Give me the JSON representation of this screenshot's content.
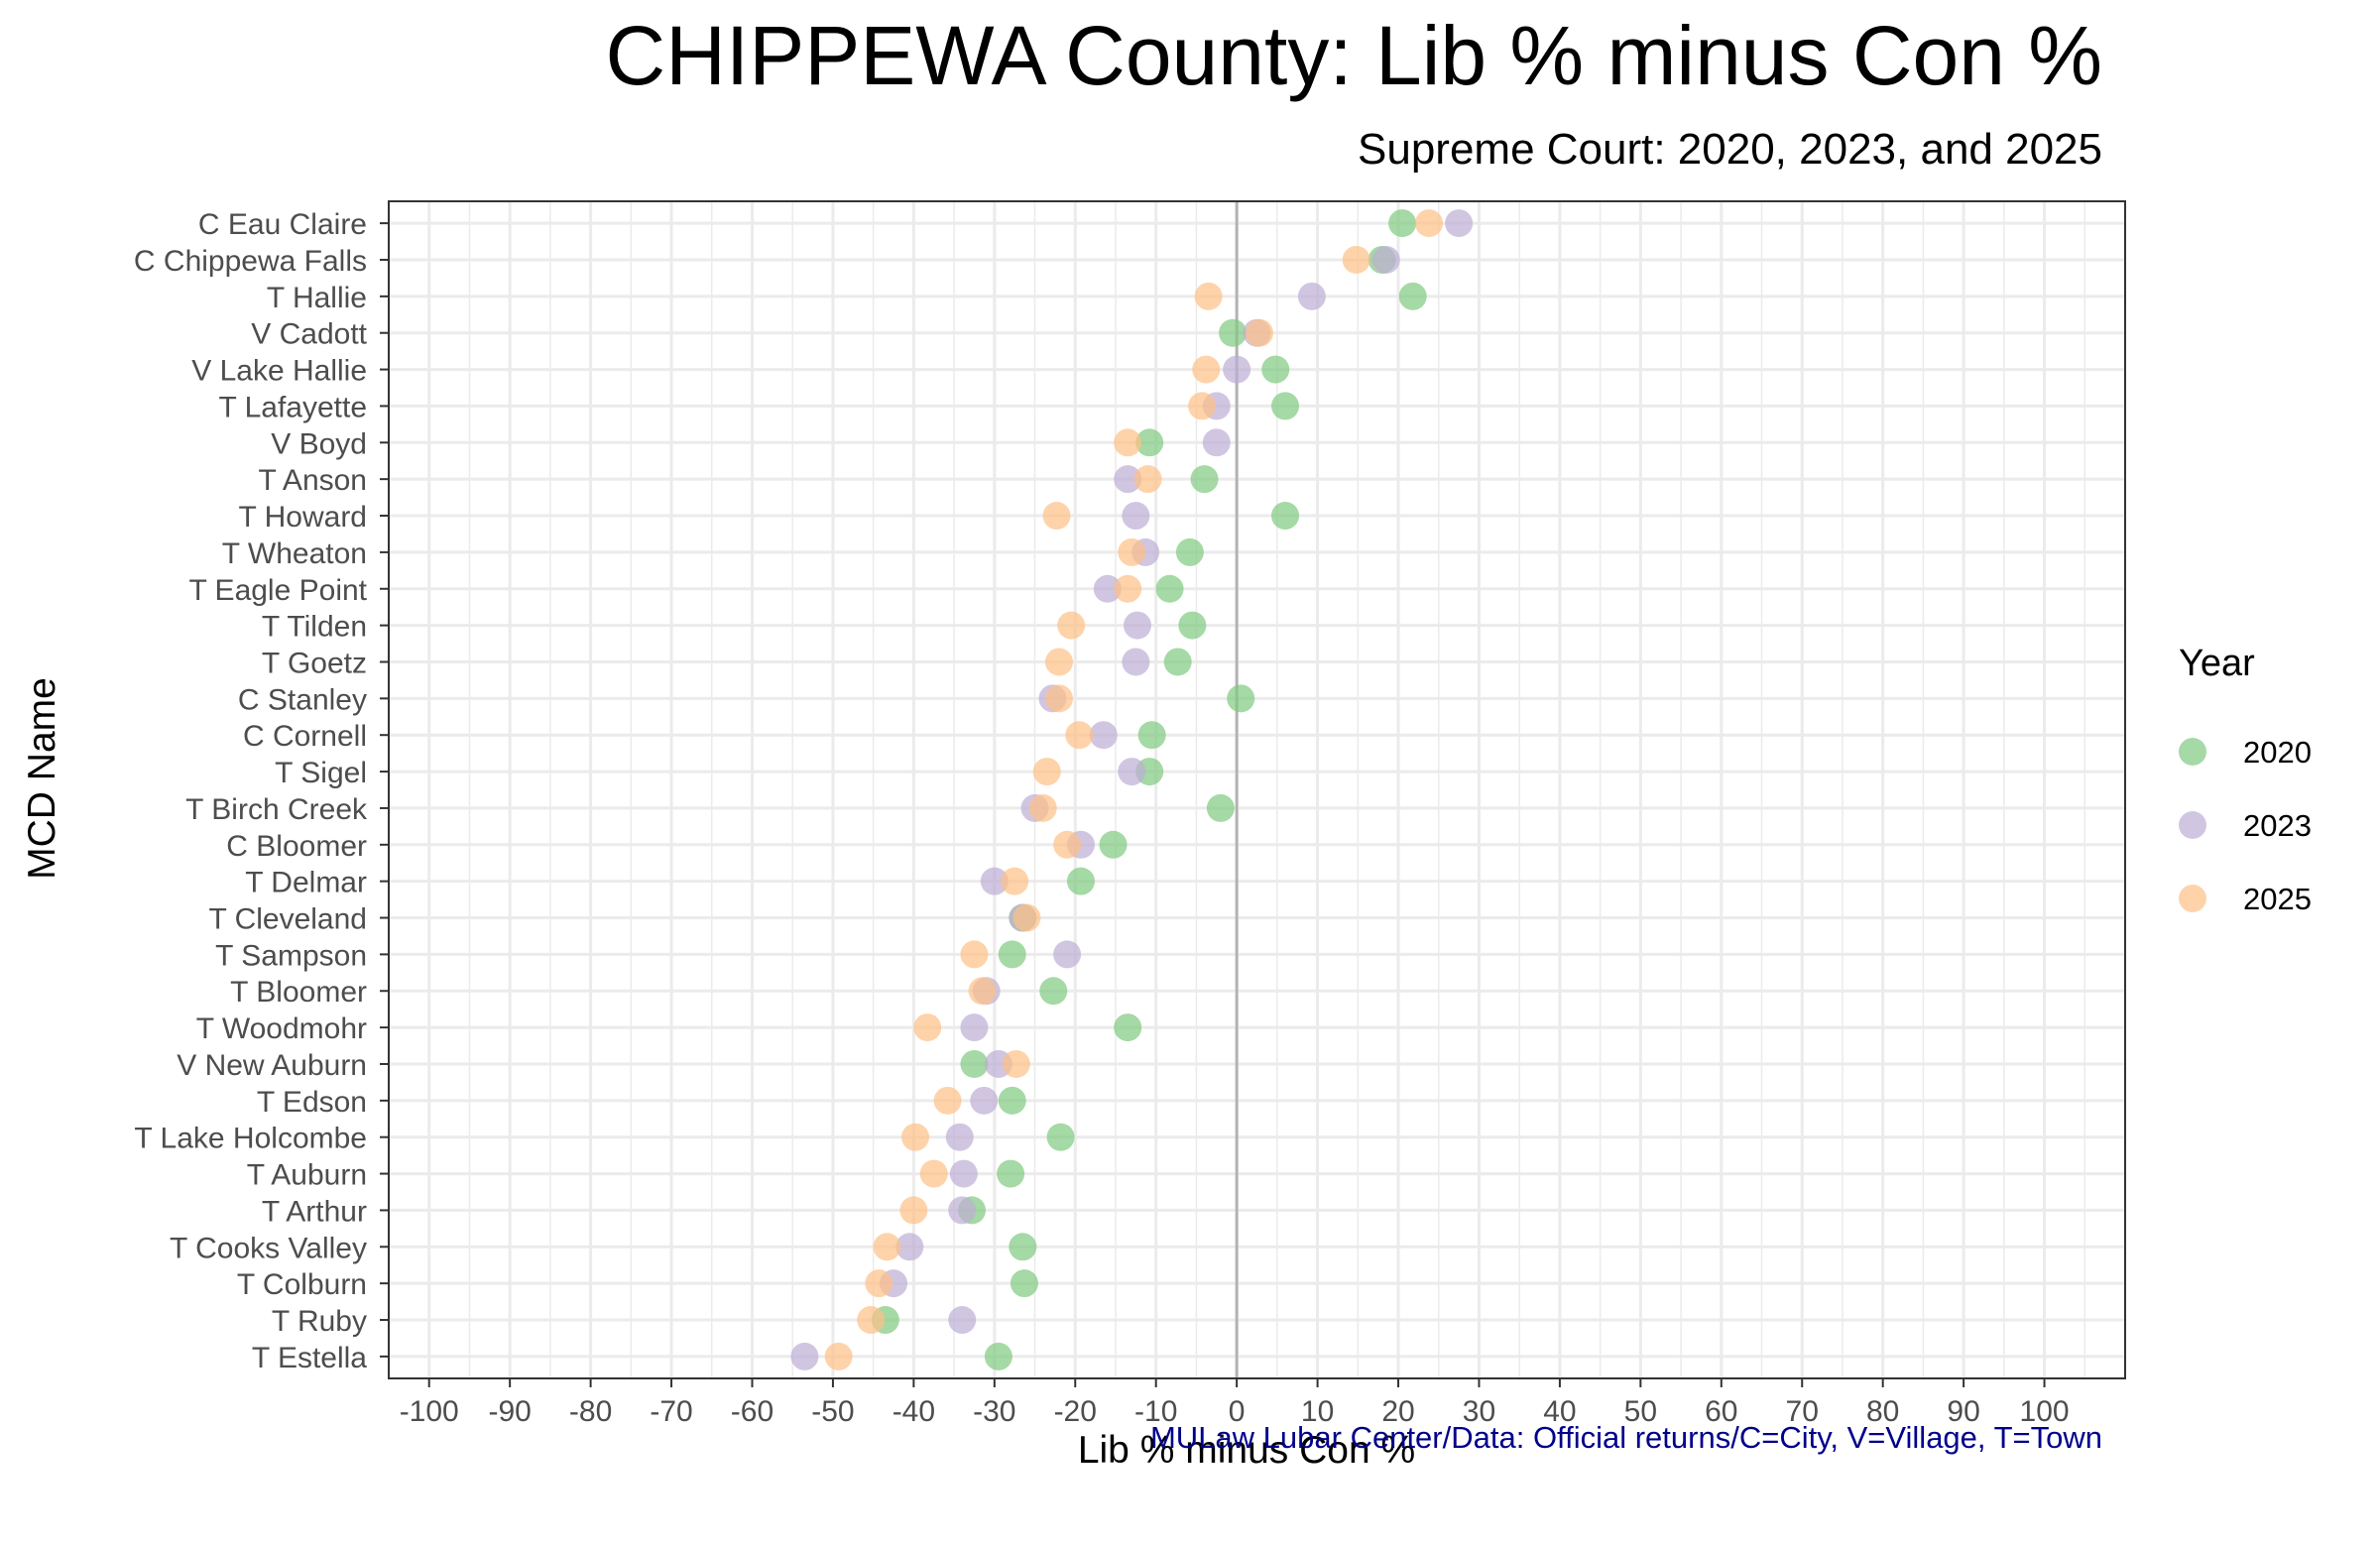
{
  "title": "CHIPPEWA County: Lib % minus Con %",
  "subtitle": "Supreme Court: 2020, 2023, and 2025",
  "caption": "MULaw Lubar Center/Data: Official returns/C=City, V=Village, T=Town",
  "colors": {
    "2020": "#7fc97f",
    "2023": "#beaed4",
    "2025": "#fdc086",
    "zero_line": "#b3b3b3",
    "grid": "#ebebeb",
    "panel_border": "#333333"
  },
  "chart_data": {
    "type": "scatter",
    "title": "CHIPPEWA County: Lib % minus Con %",
    "subtitle": "Supreme Court: 2020, 2023, and 2025",
    "xlabel": "Lib % minus Con %",
    "ylabel": "MCD Name",
    "xlim": [
      -105,
      110
    ],
    "xticks": [
      -100,
      -90,
      -80,
      -70,
      -60,
      -50,
      -40,
      -30,
      -20,
      -10,
      0,
      10,
      20,
      30,
      40,
      50,
      60,
      70,
      80,
      90,
      100
    ],
    "grid": true,
    "legend": {
      "title": "Year",
      "position": "right",
      "entries": [
        "2020",
        "2023",
        "2025"
      ]
    },
    "categories": [
      "C Eau Claire",
      "C Chippewa Falls",
      "T Hallie",
      "V Cadott",
      "V Lake Hallie",
      "T Lafayette",
      "V Boyd",
      "T Anson",
      "T Howard",
      "T Wheaton",
      "T Eagle Point",
      "T Tilden",
      "T Goetz",
      "C Stanley",
      "C Cornell",
      "T Sigel",
      "T Birch Creek",
      "C Bloomer",
      "T Delmar",
      "T Cleveland",
      "T Sampson",
      "T Bloomer",
      "T Woodmohr",
      "V New Auburn",
      "T Edson",
      "T Lake Holcombe",
      "T Auburn",
      "T Arthur",
      "T Cooks Valley",
      "T Colburn",
      "T Ruby",
      "T Estella"
    ],
    "series": [
      {
        "name": "2020",
        "values": [
          20.5,
          18,
          21.8,
          -0.5,
          4.8,
          6,
          -10.8,
          -4,
          6,
          -5.8,
          -8.3,
          -5.5,
          -7.3,
          0.5,
          -10.5,
          -10.8,
          -2,
          -15.3,
          -19.3,
          -26.5,
          -27.8,
          -22.7,
          -13.5,
          -32.5,
          -27.8,
          -21.8,
          -28,
          -32.8,
          -26.5,
          -26.3,
          -43.5,
          -29.5
        ]
      },
      {
        "name": "2023",
        "values": [
          27.5,
          18.5,
          9.3,
          2.5,
          0,
          -2.5,
          -2.5,
          -13.5,
          -12.5,
          -11.3,
          -16,
          -12.3,
          -12.5,
          -22.8,
          -16.5,
          -13,
          -25,
          -19.3,
          -30,
          -26.5,
          -21,
          -31,
          -32.5,
          -29.5,
          -31.3,
          -34.3,
          -33.8,
          -34,
          -40.5,
          -42.5,
          -34,
          -53.5
        ]
      },
      {
        "name": "2025",
        "values": [
          23.8,
          14.8,
          -3.5,
          2.8,
          -3.8,
          -4.3,
          -13.5,
          -11,
          -22.3,
          -13,
          -13.5,
          -20.5,
          -22,
          -22,
          -19.5,
          -23.5,
          -24,
          -21,
          -27.5,
          -26,
          -32.5,
          -31.5,
          -38.3,
          -27.3,
          -35.8,
          -39.8,
          -37.5,
          -40,
          -43.3,
          -44.3,
          -45.3,
          -49.3
        ]
      }
    ]
  }
}
